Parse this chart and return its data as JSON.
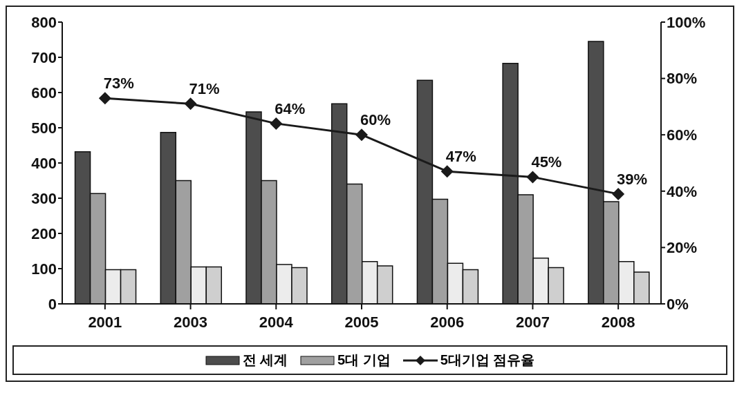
{
  "chart_data": {
    "type": "bar",
    "categories": [
      "2001",
      "2003",
      "2004",
      "2005",
      "2006",
      "2007",
      "2008"
    ],
    "series": [
      {
        "name": "전 세계",
        "color": "#4d4d4d",
        "values": [
          432,
          487,
          545,
          568,
          635,
          683,
          745
        ]
      },
      {
        "name": "5대 기업",
        "color": "#a0a0a0",
        "values": [
          313,
          350,
          350,
          340,
          297,
          310,
          290
        ]
      },
      {
        "color": "#ececec",
        "values": [
          97,
          105,
          112,
          120,
          115,
          130,
          120
        ]
      },
      {
        "color": "#cfcfcf",
        "values": [
          97,
          105,
          103,
          108,
          97,
          103,
          90
        ]
      },
      {
        "name": "5대기업 점유율",
        "type": "line",
        "axis": "y2",
        "color": "#1a1a1a",
        "marker": "diamond",
        "values": [
          73,
          71,
          64,
          60,
          47,
          45,
          39
        ],
        "value_labels": [
          "73%",
          "71%",
          "64%",
          "60%",
          "47%",
          "45%",
          "39%"
        ]
      }
    ],
    "ylim": [
      0,
      800
    ],
    "yticks": [
      0,
      100,
      200,
      300,
      400,
      500,
      600,
      700,
      800
    ],
    "y2lim": [
      0,
      100
    ],
    "y2ticks": [
      {
        "value": 0,
        "label": "0%"
      },
      {
        "value": 20,
        "label": "20%"
      },
      {
        "value": 40,
        "label": "40%"
      },
      {
        "value": 60,
        "label": "60%"
      },
      {
        "value": 80,
        "label": "80%"
      },
      {
        "value": 100,
        "label": "100%"
      }
    ],
    "grid": false,
    "legend": "bottom"
  }
}
